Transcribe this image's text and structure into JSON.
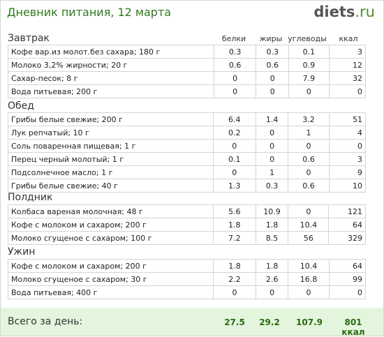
{
  "header": {
    "title": "Дневник питания, 12 марта",
    "logo_main": "diets",
    "logo_tld": ".ru"
  },
  "columns": [
    "белки",
    "жиры",
    "углеводы",
    "ккал"
  ],
  "meals": [
    {
      "name": "Завтрак",
      "items": [
        {
          "label": "Кофе вар.из молот.без сахара; 180 г",
          "protein": "0.3",
          "fat": "0.3",
          "carbs": "0.1",
          "kcal": "3"
        },
        {
          "label": "Молоко 3,2% жирности; 20 г",
          "protein": "0.6",
          "fat": "0.6",
          "carbs": "0.9",
          "kcal": "12"
        },
        {
          "label": "Сахар-песок; 8 г",
          "protein": "0",
          "fat": "0",
          "carbs": "7.9",
          "kcal": "32"
        },
        {
          "label": "Вода питьевая; 200 г",
          "protein": "0",
          "fat": "0",
          "carbs": "0",
          "kcal": "0"
        }
      ]
    },
    {
      "name": "Обед",
      "items": [
        {
          "label": "Грибы белые свежие; 200 г",
          "protein": "6.4",
          "fat": "1.4",
          "carbs": "3.2",
          "kcal": "51"
        },
        {
          "label": "Лук репчатый; 10 г",
          "protein": "0.2",
          "fat": "0",
          "carbs": "1",
          "kcal": "4"
        },
        {
          "label": "Соль поваренная пищевая; 1 г",
          "protein": "0",
          "fat": "0",
          "carbs": "0",
          "kcal": "0"
        },
        {
          "label": "Перец черный молотый; 1 г",
          "protein": "0.1",
          "fat": "0",
          "carbs": "0.6",
          "kcal": "3"
        },
        {
          "label": "Подсолнечное масло; 1 г",
          "protein": "0",
          "fat": "1",
          "carbs": "0",
          "kcal": "9"
        },
        {
          "label": "Грибы белые свежие; 40 г",
          "protein": "1.3",
          "fat": "0.3",
          "carbs": "0.6",
          "kcal": "10"
        }
      ]
    },
    {
      "name": "Полдник",
      "items": [
        {
          "label": "Колбаса вареная молочная; 48 г",
          "protein": "5.6",
          "fat": "10.9",
          "carbs": "0",
          "kcal": "121"
        },
        {
          "label": "Кофе с молоком и сахаром; 200 г",
          "protein": "1.8",
          "fat": "1.8",
          "carbs": "10.4",
          "kcal": "64"
        },
        {
          "label": "Молоко сгущеное с сахаром; 100 г",
          "protein": "7.2",
          "fat": "8.5",
          "carbs": "56",
          "kcal": "329"
        }
      ]
    },
    {
      "name": "Ужин",
      "items": [
        {
          "label": "Кофе с молоком и сахаром; 200 г",
          "protein": "1.8",
          "fat": "1.8",
          "carbs": "10.4",
          "kcal": "64"
        },
        {
          "label": "Молоко сгущеное с сахаром; 30 г",
          "protein": "2.2",
          "fat": "2.6",
          "carbs": "16.8",
          "kcal": "99"
        },
        {
          "label": "Вода питьевая; 400 г",
          "protein": "0",
          "fat": "0",
          "carbs": "0",
          "kcal": "0"
        }
      ]
    }
  ],
  "totals": {
    "label": "Всего за день:",
    "protein": "27.5",
    "fat": "29.2",
    "carbs": "107.9",
    "kcal": "801 ккал"
  }
}
